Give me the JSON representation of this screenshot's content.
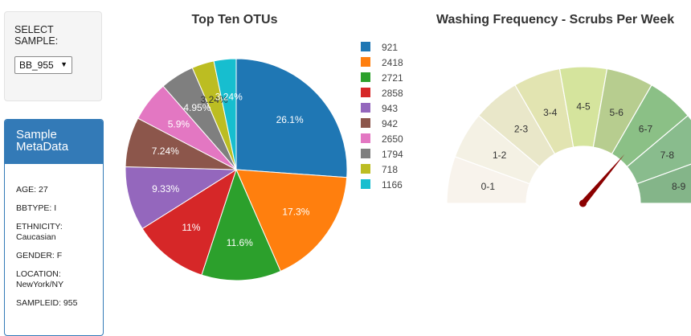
{
  "select": {
    "label": "SELECT SAMPLE:",
    "value": "BB_955",
    "arrow": "▼"
  },
  "metadata": {
    "title_line1": "Sample",
    "title_line2": "MetaData",
    "rows": [
      "AGE: 27",
      "BBTYPE: I",
      "ETHNICITY:",
      "Caucasian",
      "GENDER: F",
      "LOCATION:",
      "NewYork/NY",
      "SAMPLEID: 955"
    ]
  },
  "chart_data": [
    {
      "type": "pie",
      "title": "Top Ten OTUs",
      "labels": [
        "921",
        "2418",
        "2721",
        "2858",
        "943",
        "942",
        "2650",
        "1794",
        "718",
        "1166"
      ],
      "values": [
        26.1,
        17.3,
        11.6,
        11,
        9.33,
        7.24,
        5.9,
        4.95,
        3.24,
        3.24
      ],
      "slice_labels": [
        "26.1%",
        "17.3%",
        "11.6%",
        "11%",
        "9.33%",
        "7.24%",
        "5.9%",
        "4.95%",
        "3.24%",
        "3.24%"
      ],
      "colors": [
        "#1f77b4",
        "#ff7f0e",
        "#2ca02c",
        "#d62728",
        "#9467bd",
        "#8c564b",
        "#e377c2",
        "#7f7f7f",
        "#bcbd22",
        "#17becf"
      ],
      "legend_position": "right"
    },
    {
      "type": "gauge",
      "title": "Washing Frequency - Scrubs Per Week",
      "sector_labels": [
        "0-1",
        "1-2",
        "2-3",
        "3-4",
        "4-5",
        "5-6",
        "6-7",
        "7-8",
        "8-9"
      ],
      "sector_colors": [
        "#f8f3ec",
        "#f4f1e4",
        "#e9e7c9",
        "#e2e4b1",
        "#d5e49d",
        "#b7cd8f",
        "#8bc086",
        "#89bc8d",
        "#84b589"
      ],
      "value": 6.5,
      "range": [
        0,
        9
      ]
    }
  ]
}
